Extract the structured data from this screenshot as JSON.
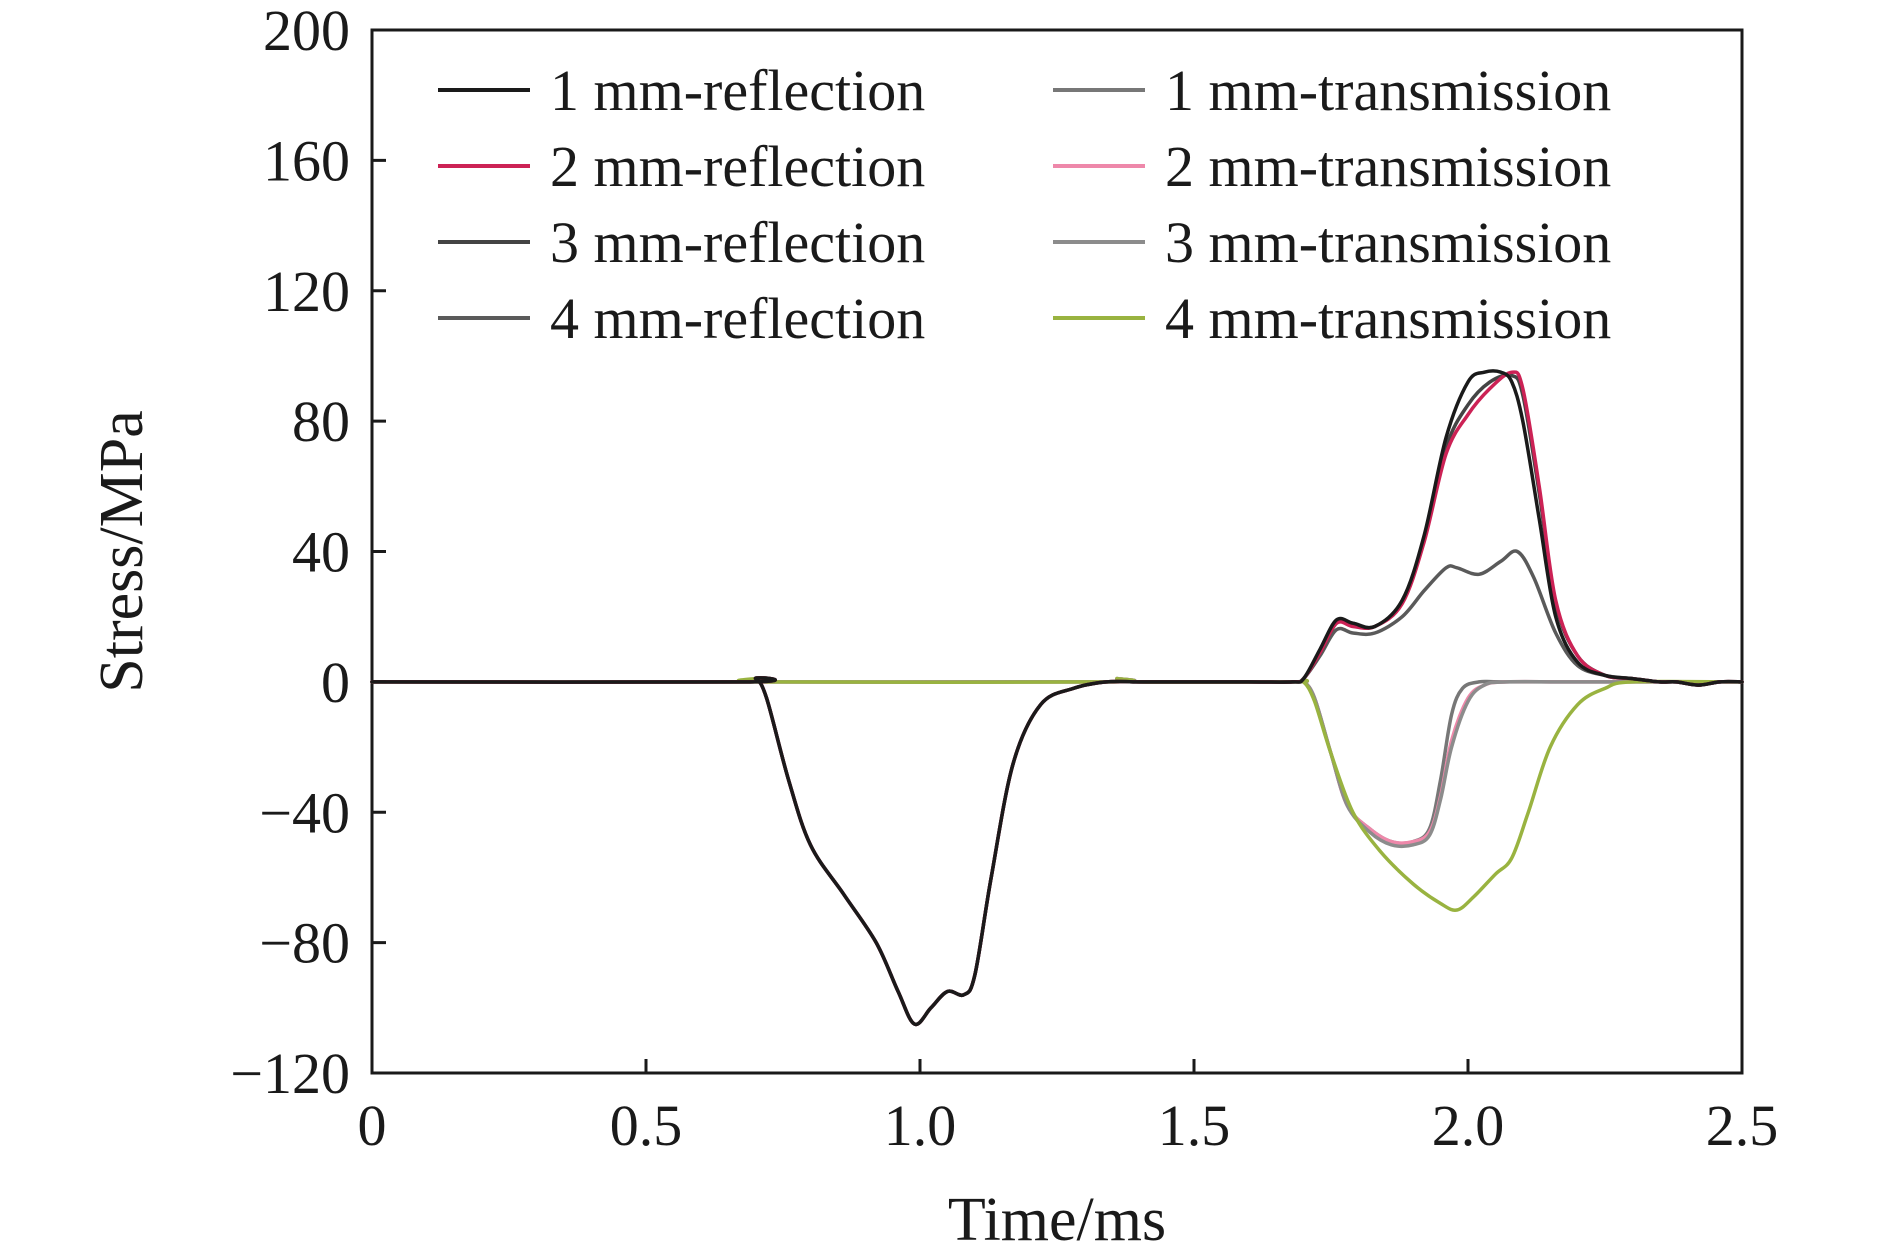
{
  "chart_data": {
    "type": "line",
    "title": "",
    "xlabel": "Time/ms",
    "ylabel": "Stress/MPa",
    "xlim": [
      0,
      2.5
    ],
    "ylim": [
      -120,
      200
    ],
    "xticks": [
      0,
      0.5,
      1.0,
      1.5,
      2.0,
      2.5
    ],
    "xtick_labels": [
      "0",
      "0.5",
      "1.0",
      "1.5",
      "2.0",
      "2.5"
    ],
    "yticks": [
      -120,
      -80,
      -40,
      0,
      40,
      80,
      120,
      160,
      200
    ],
    "ytick_labels": [
      "−120",
      "−80",
      "−40",
      "0",
      "40",
      "80",
      "120",
      "160",
      "200"
    ],
    "grid": false,
    "legend_position": "top",
    "series": [
      {
        "name": "1 mm-reflection",
        "color": "#1a1a1a",
        "x": [
          0,
          0.68,
          0.7,
          0.72,
          0.76,
          0.8,
          0.86,
          0.92,
          0.96,
          0.99,
          1.02,
          1.05,
          1.08,
          1.1,
          1.13,
          1.17,
          1.22,
          1.28,
          1.34,
          1.4,
          1.5,
          1.6,
          1.68,
          1.7,
          1.73,
          1.76,
          1.79,
          1.83,
          1.88,
          1.92,
          1.96,
          2.0,
          2.03,
          2.06,
          2.08,
          2.1,
          2.13,
          2.16,
          2.2,
          2.25,
          2.3,
          2.35,
          2.38,
          2.42,
          2.46,
          2.5
        ],
        "y": [
          0,
          0,
          1,
          -5,
          -30,
          -50,
          -65,
          -80,
          -95,
          -105,
          -100,
          -95,
          -96,
          -90,
          -60,
          -25,
          -7,
          -2,
          0,
          0,
          0,
          0,
          0,
          1,
          10,
          19,
          18,
          17,
          25,
          45,
          75,
          92,
          95,
          95,
          92,
          80,
          50,
          20,
          6,
          2,
          1,
          0,
          0,
          -1,
          0,
          0
        ]
      },
      {
        "name": "2 mm-reflection",
        "color": "#cc2255",
        "x": [
          0,
          0.68,
          0.7,
          0.72,
          0.76,
          0.8,
          0.86,
          0.92,
          0.96,
          0.99,
          1.02,
          1.05,
          1.08,
          1.1,
          1.13,
          1.17,
          1.22,
          1.28,
          1.34,
          1.4,
          1.5,
          1.6,
          1.68,
          1.7,
          1.73,
          1.76,
          1.79,
          1.83,
          1.88,
          1.92,
          1.96,
          2.0,
          2.04,
          2.08,
          2.1,
          2.13,
          2.16,
          2.2,
          2.25,
          2.3,
          2.35,
          2.38,
          2.42,
          2.46,
          2.5
        ],
        "y": [
          0,
          0,
          1,
          -5,
          -30,
          -50,
          -65,
          -80,
          -95,
          -105,
          -100,
          -95,
          -96,
          -90,
          -60,
          -25,
          -7,
          -2,
          0,
          0,
          0,
          0,
          0,
          1,
          9,
          18,
          17,
          17,
          24,
          43,
          70,
          82,
          90,
          95,
          90,
          60,
          25,
          8,
          2,
          1,
          0,
          0,
          -1,
          0,
          0
        ]
      },
      {
        "name": "3 mm-reflection",
        "color": "#444444",
        "x": [
          0,
          0.68,
          0.7,
          0.72,
          0.76,
          0.8,
          0.86,
          0.92,
          0.96,
          0.99,
          1.02,
          1.05,
          1.08,
          1.1,
          1.13,
          1.17,
          1.22,
          1.28,
          1.34,
          1.4,
          1.5,
          1.6,
          1.68,
          1.7,
          1.73,
          1.76,
          1.79,
          1.83,
          1.88,
          1.92,
          1.96,
          2.0,
          2.04,
          2.08,
          2.1,
          2.13,
          2.16,
          2.2,
          2.25,
          2.3,
          2.35,
          2.38,
          2.42,
          2.46,
          2.5
        ],
        "y": [
          0,
          0,
          1,
          -5,
          -30,
          -50,
          -65,
          -80,
          -95,
          -105,
          -100,
          -95,
          -96,
          -90,
          -60,
          -25,
          -7,
          -2,
          0,
          0,
          0,
          0,
          0,
          1,
          9,
          18,
          18,
          17,
          25,
          44,
          72,
          85,
          92,
          94,
          88,
          58,
          24,
          8,
          2,
          1,
          0,
          0,
          -1,
          0,
          0
        ]
      },
      {
        "name": "4 mm-reflection",
        "color": "#5a5a5a",
        "x": [
          0,
          0.68,
          0.7,
          0.72,
          0.76,
          0.8,
          0.86,
          0.92,
          0.96,
          0.99,
          1.02,
          1.05,
          1.08,
          1.1,
          1.13,
          1.17,
          1.22,
          1.28,
          1.34,
          1.4,
          1.5,
          1.6,
          1.68,
          1.7,
          1.73,
          1.76,
          1.79,
          1.83,
          1.88,
          1.92,
          1.96,
          1.98,
          2.02,
          2.06,
          2.09,
          2.12,
          2.16,
          2.2,
          2.25,
          2.3,
          2.35,
          2.38,
          2.42,
          2.46,
          2.5
        ],
        "y": [
          0,
          0,
          1,
          -5,
          -30,
          -50,
          -65,
          -80,
          -95,
          -105,
          -100,
          -95,
          -96,
          -90,
          -60,
          -25,
          -7,
          -2,
          0,
          0,
          0,
          0,
          0,
          1,
          8,
          16,
          15,
          15,
          20,
          28,
          35,
          35,
          33,
          37,
          40,
          32,
          15,
          5,
          2,
          1,
          0,
          0,
          -1,
          0,
          0
        ]
      },
      {
        "name": "1 mm-transmission",
        "color": "#777777",
        "x": [
          0,
          0.7,
          1.34,
          1.36,
          1.4,
          1.68,
          1.7,
          1.72,
          1.75,
          1.78,
          1.82,
          1.86,
          1.9,
          1.93,
          1.95,
          1.97,
          1.99,
          2.02,
          2.06,
          2.2,
          2.5
        ],
        "y": [
          0,
          0,
          0,
          1,
          0,
          0,
          0,
          -5,
          -22,
          -38,
          -45,
          -49,
          -49,
          -45,
          -30,
          -10,
          -2,
          0,
          0,
          0,
          0
        ]
      },
      {
        "name": "2 mm-transmission",
        "color": "#ee88aa",
        "x": [
          0,
          0.7,
          1.34,
          1.36,
          1.4,
          1.68,
          1.7,
          1.72,
          1.75,
          1.78,
          1.82,
          1.86,
          1.9,
          1.93,
          1.95,
          1.97,
          2.0,
          2.03,
          2.07,
          2.2,
          2.5
        ],
        "y": [
          0,
          0,
          0,
          1,
          0,
          0,
          0,
          -5,
          -22,
          -38,
          -45,
          -49,
          -49,
          -46,
          -35,
          -18,
          -5,
          -1,
          0,
          0,
          0
        ]
      },
      {
        "name": "3 mm-transmission",
        "color": "#8c8c8c",
        "x": [
          0,
          0.7,
          1.34,
          1.36,
          1.4,
          1.68,
          1.7,
          1.72,
          1.75,
          1.78,
          1.82,
          1.86,
          1.9,
          1.93,
          1.95,
          1.97,
          2.0,
          2.03,
          2.07,
          2.2,
          2.5
        ],
        "y": [
          0,
          0,
          0,
          1,
          0,
          0,
          0,
          -5,
          -22,
          -38,
          -46,
          -50,
          -50,
          -47,
          -36,
          -20,
          -6,
          -1,
          0,
          0,
          0
        ]
      },
      {
        "name": "4 mm-transmission",
        "color": "#99b340",
        "x": [
          0,
          0.68,
          0.7,
          0.72,
          1.34,
          1.36,
          1.4,
          1.68,
          1.7,
          1.72,
          1.75,
          1.79,
          1.84,
          1.9,
          1.95,
          1.98,
          2.01,
          2.05,
          2.08,
          2.11,
          2.15,
          2.2,
          2.25,
          2.3,
          2.5
        ],
        "y": [
          0,
          0,
          1,
          0,
          0,
          1,
          0,
          0,
          0,
          -6,
          -22,
          -40,
          -52,
          -62,
          -68,
          -70,
          -66,
          -59,
          -54,
          -40,
          -20,
          -7,
          -2,
          0,
          0
        ]
      }
    ]
  }
}
